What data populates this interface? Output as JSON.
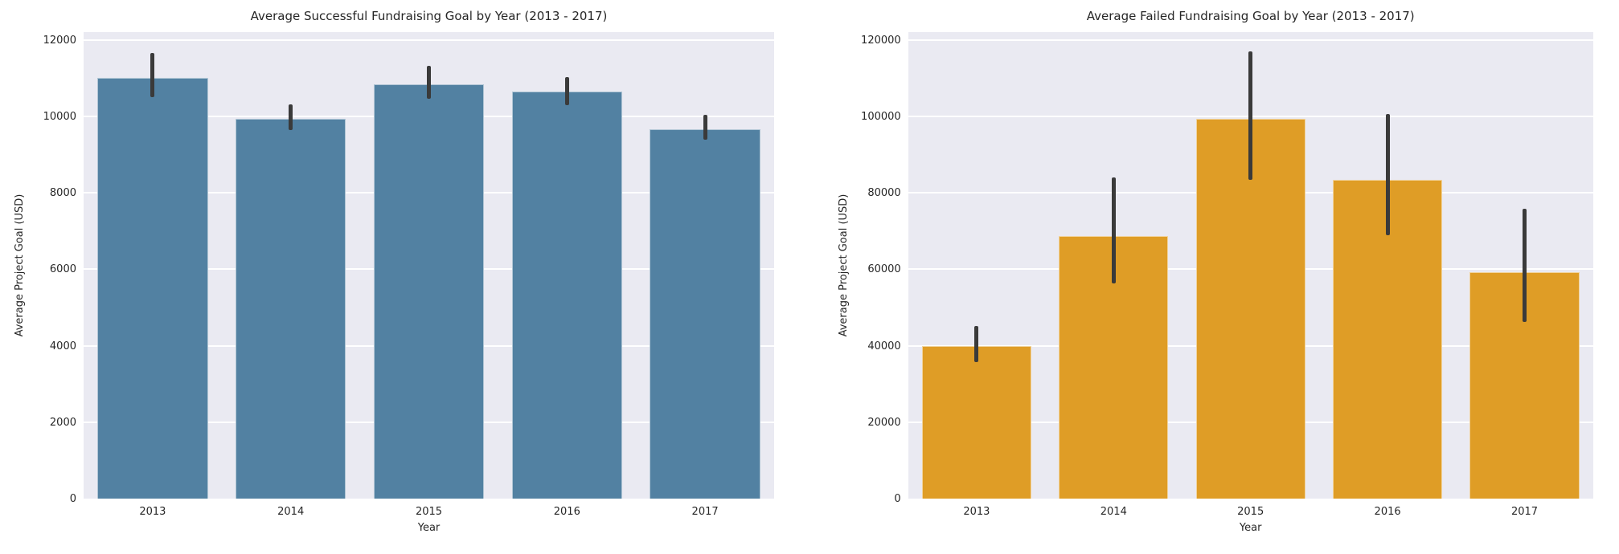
{
  "figure": {
    "background": "#ffffff"
  },
  "colors": {
    "plot_background": "#EAEAF2",
    "grid_line": "#FFFFFF",
    "error_bar": "#3A3A3A",
    "text": "#262626",
    "bar_blue": "#5281A2",
    "bar_orange": "#DF9D26"
  },
  "chart_data": [
    {
      "type": "bar",
      "title": "Average Successful Fundraising Goal by Year (2013 - 2017)",
      "xlabel": "Year",
      "ylabel": "Average Project Goal (USD)",
      "categories": [
        "2013",
        "2014",
        "2015",
        "2016",
        "2017"
      ],
      "values": [
        11000,
        9940,
        10840,
        10640,
        9660
      ],
      "error_low": [
        10490,
        9630,
        10460,
        10280,
        9390
      ],
      "error_high": [
        11660,
        10320,
        11310,
        11020,
        10040
      ],
      "bar_color": "#5281A2",
      "ylim": [
        0,
        12200
      ],
      "yticks": [
        0,
        2000,
        4000,
        6000,
        8000,
        10000,
        12000
      ],
      "grid": "horizontal",
      "legend": "none"
    },
    {
      "type": "bar",
      "title": "Average Failed Fundraising Goal by Year (2013 - 2017)",
      "xlabel": "Year",
      "ylabel": "Average Project Goal (USD)",
      "categories": [
        "2013",
        "2014",
        "2015",
        "2016",
        "2017"
      ],
      "values": [
        40000,
        68600,
        99300,
        83400,
        59200
      ],
      "error_low": [
        35700,
        56200,
        83400,
        68900,
        46100
      ],
      "error_high": [
        45100,
        84000,
        116900,
        100500,
        75800
      ],
      "bar_color": "#DF9D26",
      "ylim": [
        0,
        122000
      ],
      "yticks": [
        0,
        20000,
        40000,
        60000,
        80000,
        100000,
        120000
      ],
      "grid": "horizontal",
      "legend": "none"
    }
  ]
}
